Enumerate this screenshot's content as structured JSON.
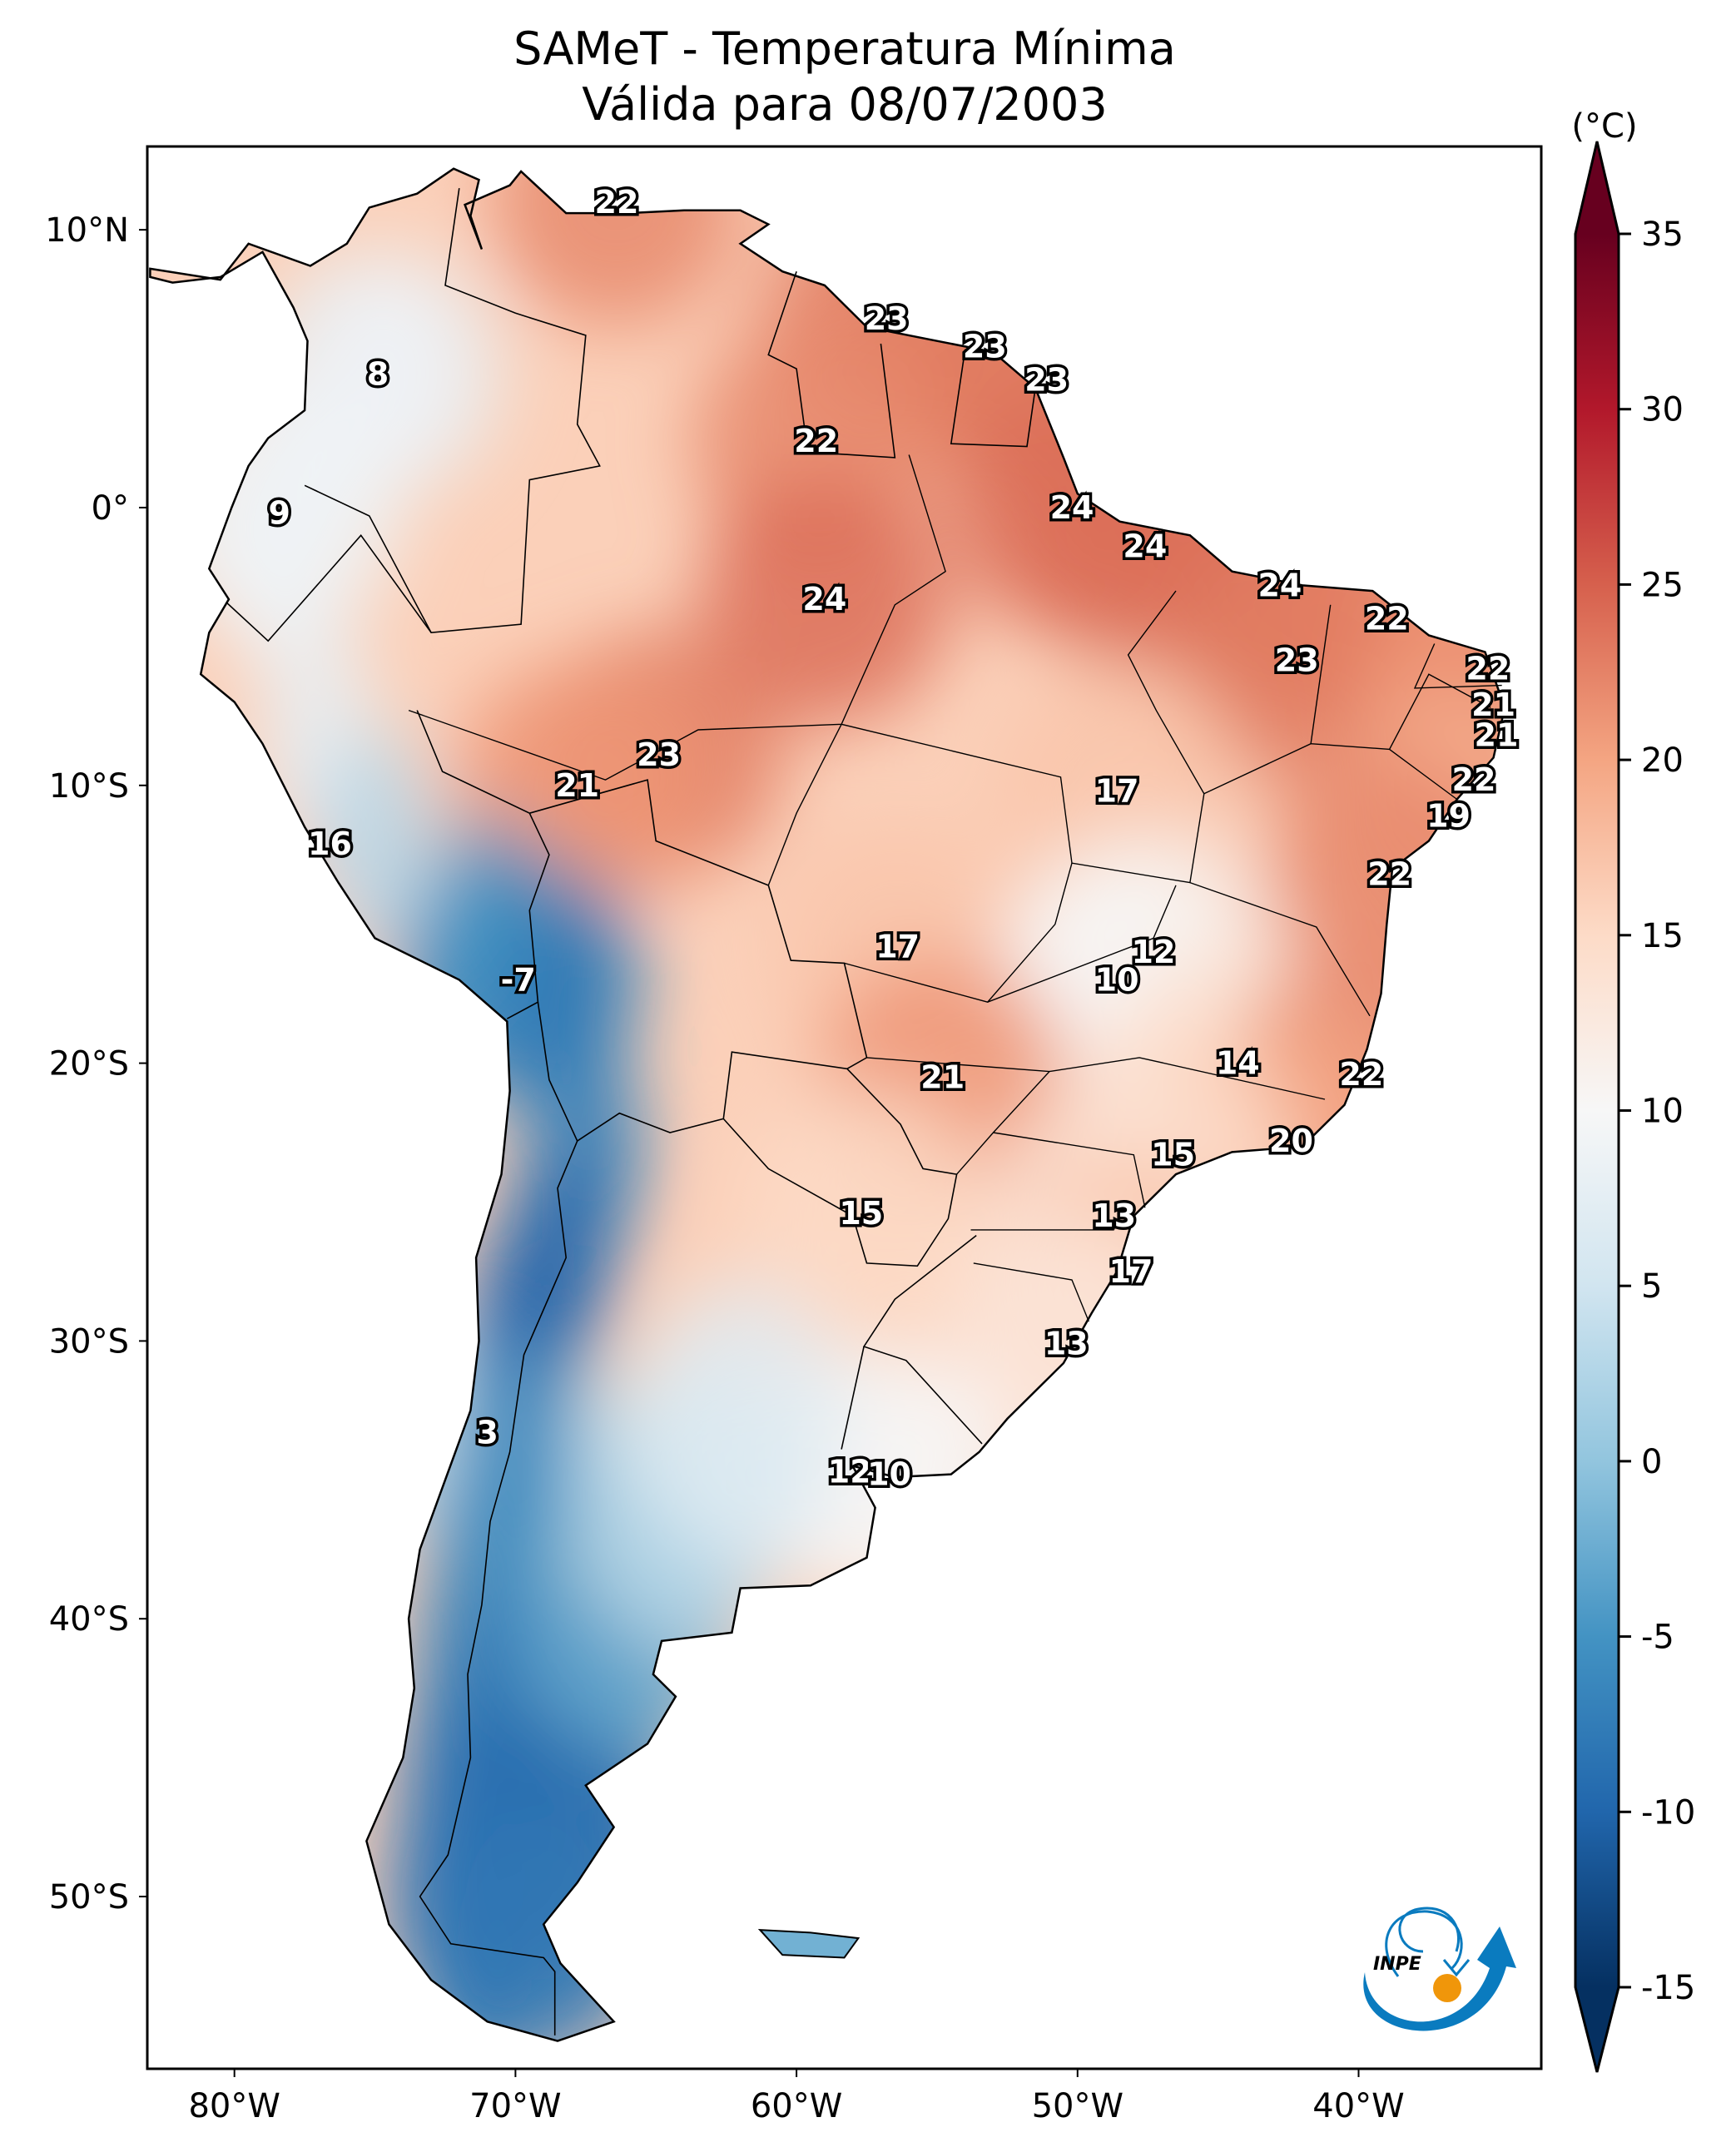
{
  "title": {
    "line1": "SAMeT - Temperatura Mínima",
    "line2": "Válida para 08/07/2003"
  },
  "chart_data": {
    "type": "heatmap",
    "title": "SAMeT - Temperatura Mínima",
    "subtitle": "Válida para 08/07/2003",
    "projection": "PlateCarree",
    "lon_range": [
      -83.1,
      -33.5
    ],
    "lat_range": [
      -56.2,
      13.0
    ],
    "x_ticks": [
      {
        "value": -80,
        "label": "80°W"
      },
      {
        "value": -70,
        "label": "70°W"
      },
      {
        "value": -60,
        "label": "60°W"
      },
      {
        "value": -50,
        "label": "50°W"
      },
      {
        "value": -40,
        "label": "40°W"
      }
    ],
    "y_ticks": [
      {
        "value": 10,
        "label": "10°N"
      },
      {
        "value": 0,
        "label": "0°"
      },
      {
        "value": -10,
        "label": "10°S"
      },
      {
        "value": -20,
        "label": "20°S"
      },
      {
        "value": -30,
        "label": "30°S"
      },
      {
        "value": -40,
        "label": "40°S"
      },
      {
        "value": -50,
        "label": "50°S"
      }
    ],
    "colorbar": {
      "unit_label": "(°C)",
      "min": -15,
      "max": 35,
      "extend": "both",
      "colormap": "RdBu_r",
      "ticks": [
        35,
        30,
        25,
        20,
        15,
        10,
        5,
        0,
        -5,
        -10,
        -15
      ],
      "tick_labels": [
        "35",
        "30",
        "25",
        "20",
        "15",
        "10",
        "5",
        "0",
        "-5",
        "-10",
        "-15"
      ],
      "stops": [
        {
          "value": -15,
          "color": "#053061"
        },
        {
          "value": -10,
          "color": "#2166ac"
        },
        {
          "value": -5,
          "color": "#4393c3"
        },
        {
          "value": 0,
          "color": "#92c5de"
        },
        {
          "value": 5,
          "color": "#d1e5f0"
        },
        {
          "value": 10,
          "color": "#f7f7f7"
        },
        {
          "value": 15,
          "color": "#fddbc7"
        },
        {
          "value": 20,
          "color": "#f4a582"
        },
        {
          "value": 25,
          "color": "#d6604d"
        },
        {
          "value": 30,
          "color": "#b2182b"
        },
        {
          "value": 35,
          "color": "#67001f"
        }
      ]
    },
    "station_labels": [
      {
        "lon": -66.4,
        "lat": 11.0,
        "value": 22
      },
      {
        "lon": -56.8,
        "lat": 6.8,
        "value": 23
      },
      {
        "lon": -53.3,
        "lat": 5.8,
        "value": 23
      },
      {
        "lon": -51.1,
        "lat": 4.6,
        "value": 23
      },
      {
        "lon": -74.9,
        "lat": 4.8,
        "value": 8
      },
      {
        "lon": -59.3,
        "lat": 2.4,
        "value": 22
      },
      {
        "lon": -78.4,
        "lat": -0.2,
        "value": 9
      },
      {
        "lon": -50.2,
        "lat": 0.0,
        "value": 24
      },
      {
        "lon": -47.6,
        "lat": -1.4,
        "value": 24
      },
      {
        "lon": -59.0,
        "lat": -3.3,
        "value": 24
      },
      {
        "lon": -42.8,
        "lat": -2.8,
        "value": 24
      },
      {
        "lon": -39.0,
        "lat": -4.0,
        "value": 22
      },
      {
        "lon": -42.2,
        "lat": -5.5,
        "value": 23
      },
      {
        "lon": -35.4,
        "lat": -5.8,
        "value": 22
      },
      {
        "lon": -35.2,
        "lat": -7.1,
        "value": 21
      },
      {
        "lon": -35.1,
        "lat": -8.2,
        "value": 21
      },
      {
        "lon": -35.9,
        "lat": -9.8,
        "value": 22
      },
      {
        "lon": -36.8,
        "lat": -11.1,
        "value": 19
      },
      {
        "lon": -38.9,
        "lat": -13.2,
        "value": 22
      },
      {
        "lon": -64.9,
        "lat": -8.9,
        "value": 23
      },
      {
        "lon": -67.8,
        "lat": -10.0,
        "value": 21
      },
      {
        "lon": -48.6,
        "lat": -10.2,
        "value": 17
      },
      {
        "lon": -76.6,
        "lat": -12.1,
        "value": 16
      },
      {
        "lon": -56.4,
        "lat": -15.8,
        "value": 17
      },
      {
        "lon": -47.3,
        "lat": -16.0,
        "value": 12
      },
      {
        "lon": -48.6,
        "lat": -17.0,
        "value": 10
      },
      {
        "lon": -69.9,
        "lat": -17.0,
        "value": -7
      },
      {
        "lon": -44.3,
        "lat": -20.0,
        "value": 14
      },
      {
        "lon": -39.9,
        "lat": -20.4,
        "value": 22
      },
      {
        "lon": -54.8,
        "lat": -20.5,
        "value": 21
      },
      {
        "lon": -42.4,
        "lat": -22.8,
        "value": 20
      },
      {
        "lon": -46.6,
        "lat": -23.3,
        "value": 15
      },
      {
        "lon": -57.7,
        "lat": -25.4,
        "value": 15
      },
      {
        "lon": -48.7,
        "lat": -25.5,
        "value": 13
      },
      {
        "lon": -48.1,
        "lat": -27.5,
        "value": 17
      },
      {
        "lon": -50.4,
        "lat": -30.1,
        "value": 13
      },
      {
        "lon": -71.0,
        "lat": -33.3,
        "value": 3
      },
      {
        "lon": -58.1,
        "lat": -34.7,
        "value": 12
      },
      {
        "lon": -56.7,
        "lat": -34.8,
        "value": 10
      }
    ]
  },
  "logo": {
    "text": "INPE",
    "colors": {
      "blue": "#0a7bbf",
      "orange": "#f0960a"
    }
  }
}
